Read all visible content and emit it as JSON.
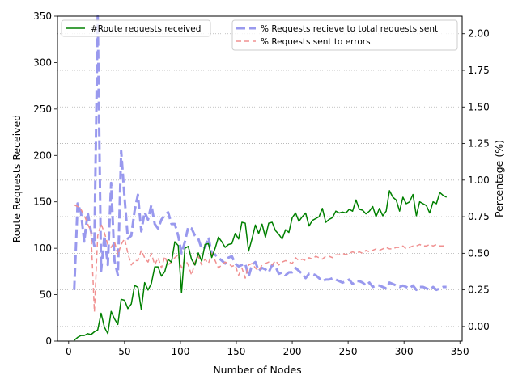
{
  "chart_data": {
    "type": "line",
    "title": "",
    "xlabel": "Number of Nodes",
    "ylabel_left": "Route Requests Received",
    "ylabel_right": "Percentage (%)",
    "xlim": [
      -10,
      352
    ],
    "ylim_left": [
      0,
      350
    ],
    "ylim_right": [
      -0.1,
      2.12
    ],
    "x_ticks": [
      0,
      50,
      100,
      150,
      200,
      250,
      300,
      350
    ],
    "y_left_ticks": [
      0,
      50,
      100,
      150,
      200,
      250,
      300,
      350
    ],
    "y_right_ticks": [
      0.0,
      0.25,
      0.5,
      0.75,
      1.0,
      1.25,
      1.5,
      1.75,
      2.0
    ],
    "y_right_tick_labels": [
      "0.00",
      "0.25",
      "0.50",
      "0.75",
      "1.00",
      "1.25",
      "1.50",
      "1.75",
      "2.00"
    ],
    "grid": "horizontal dotted lines at right-axis ticks",
    "legend_left_placement": "top-left",
    "legend_right_placement": "top-right",
    "x": [
      5,
      8,
      11,
      14,
      17,
      20,
      23,
      26,
      29,
      32,
      35,
      38,
      41,
      44,
      47,
      50,
      53,
      56,
      59,
      62,
      65,
      68,
      71,
      74,
      77,
      80,
      83,
      86,
      89,
      92,
      95,
      98,
      101,
      104,
      107,
      110,
      113,
      116,
      119,
      122,
      125,
      128,
      131,
      134,
      137,
      140,
      143,
      146,
      149,
      152,
      155,
      158,
      161,
      164,
      167,
      170,
      173,
      176,
      179,
      182,
      185,
      188,
      191,
      194,
      197,
      200,
      203,
      206,
      209,
      212,
      215,
      218,
      221,
      224,
      227,
      230,
      233,
      236,
      239,
      242,
      245,
      248,
      251,
      254,
      257,
      260,
      263,
      266,
      269,
      272,
      275,
      278,
      281,
      284,
      287,
      290,
      293,
      296,
      299,
      302,
      305,
      308,
      311,
      314,
      317,
      320,
      323,
      326,
      329,
      332,
      335,
      338
    ],
    "series": [
      {
        "name": "#Route requests received",
        "axis": "left",
        "color": "#008000",
        "style": "solid",
        "values": [
          1,
          4,
          6,
          6,
          8,
          7,
          10,
          12,
          30,
          15,
          8,
          32,
          24,
          18,
          45,
          44,
          35,
          40,
          60,
          58,
          34,
          63,
          55,
          62,
          80,
          80,
          70,
          75,
          88,
          85,
          107,
          103,
          52,
          100,
          102,
          88,
          82,
          95,
          86,
          104,
          105,
          90,
          100,
          112,
          107,
          101,
          104,
          105,
          116,
          110,
          128,
          127,
          97,
          110,
          125,
          116,
          126,
          112,
          127,
          128,
          119,
          115,
          110,
          120,
          117,
          133,
          138,
          129,
          134,
          138,
          124,
          130,
          132,
          134,
          143,
          128,
          131,
          133,
          140,
          138,
          139,
          138,
          142,
          140,
          152,
          142,
          141,
          137,
          140,
          145,
          134,
          143,
          135,
          140,
          162,
          155,
          152,
          140,
          155,
          148,
          150,
          158,
          135,
          150,
          148,
          146,
          138,
          150,
          148,
          160,
          157,
          155
        ]
      },
      {
        "name": "% Requests recieve to total requests sent",
        "axis": "right",
        "color": "#9999ee",
        "style": "dashed-wide",
        "values": [
          0.25,
          0.84,
          0.78,
          0.58,
          0.78,
          0.65,
          0.55,
          2.12,
          0.38,
          0.62,
          0.42,
          0.98,
          0.45,
          0.35,
          1.2,
          0.88,
          0.6,
          0.62,
          0.79,
          0.9,
          0.65,
          0.78,
          0.73,
          0.83,
          0.7,
          0.67,
          0.73,
          0.76,
          0.78,
          0.7,
          0.7,
          0.62,
          0.5,
          0.58,
          0.68,
          0.67,
          0.62,
          0.6,
          0.53,
          0.54,
          0.61,
          0.5,
          0.49,
          0.47,
          0.45,
          0.43,
          0.47,
          0.48,
          0.43,
          0.41,
          0.42,
          0.43,
          0.34,
          0.42,
          0.44,
          0.38,
          0.4,
          0.39,
          0.37,
          0.42,
          0.41,
          0.36,
          0.37,
          0.35,
          0.37,
          0.37,
          0.4,
          0.38,
          0.36,
          0.33,
          0.36,
          0.36,
          0.35,
          0.33,
          0.31,
          0.32,
          0.32,
          0.33,
          0.32,
          0.31,
          0.3,
          0.31,
          0.32,
          0.29,
          0.31,
          0.31,
          0.3,
          0.28,
          0.3,
          0.27,
          0.28,
          0.28,
          0.27,
          0.26,
          0.3,
          0.29,
          0.28,
          0.27,
          0.28,
          0.27,
          0.26,
          0.28,
          0.25,
          0.27,
          0.27,
          0.26,
          0.25,
          0.27,
          0.25,
          0.26,
          0.27,
          0.27
        ]
      },
      {
        "name": "% Requests sent to errors",
        "axis": "right",
        "color": "#f09090",
        "style": "dashed",
        "values": [
          0.83,
          0.82,
          0.8,
          0.76,
          0.7,
          0.65,
          0.1,
          0.62,
          0.7,
          0.64,
          0.56,
          0.54,
          0.58,
          0.49,
          0.56,
          0.6,
          0.5,
          0.42,
          0.45,
          0.45,
          0.52,
          0.47,
          0.44,
          0.5,
          0.42,
          0.47,
          0.4,
          0.48,
          0.42,
          0.44,
          0.47,
          0.49,
          0.4,
          0.46,
          0.42,
          0.35,
          0.44,
          0.48,
          0.42,
          0.46,
          0.43,
          0.5,
          0.45,
          0.4,
          0.42,
          0.44,
          0.43,
          0.41,
          0.42,
          0.35,
          0.4,
          0.33,
          0.42,
          0.43,
          0.4,
          0.38,
          0.42,
          0.43,
          0.44,
          0.42,
          0.45,
          0.42,
          0.44,
          0.45,
          0.44,
          0.43,
          0.47,
          0.45,
          0.46,
          0.45,
          0.47,
          0.46,
          0.48,
          0.47,
          0.46,
          0.48,
          0.48,
          0.47,
          0.49,
          0.49,
          0.5,
          0.49,
          0.5,
          0.51,
          0.5,
          0.51,
          0.5,
          0.52,
          0.51,
          0.52,
          0.53,
          0.52,
          0.53,
          0.54,
          0.53,
          0.53,
          0.54,
          0.54,
          0.55,
          0.53,
          0.54,
          0.55,
          0.55,
          0.56,
          0.55,
          0.55,
          0.56,
          0.55,
          0.56,
          0.55,
          0.55,
          0.56
        ]
      }
    ]
  }
}
